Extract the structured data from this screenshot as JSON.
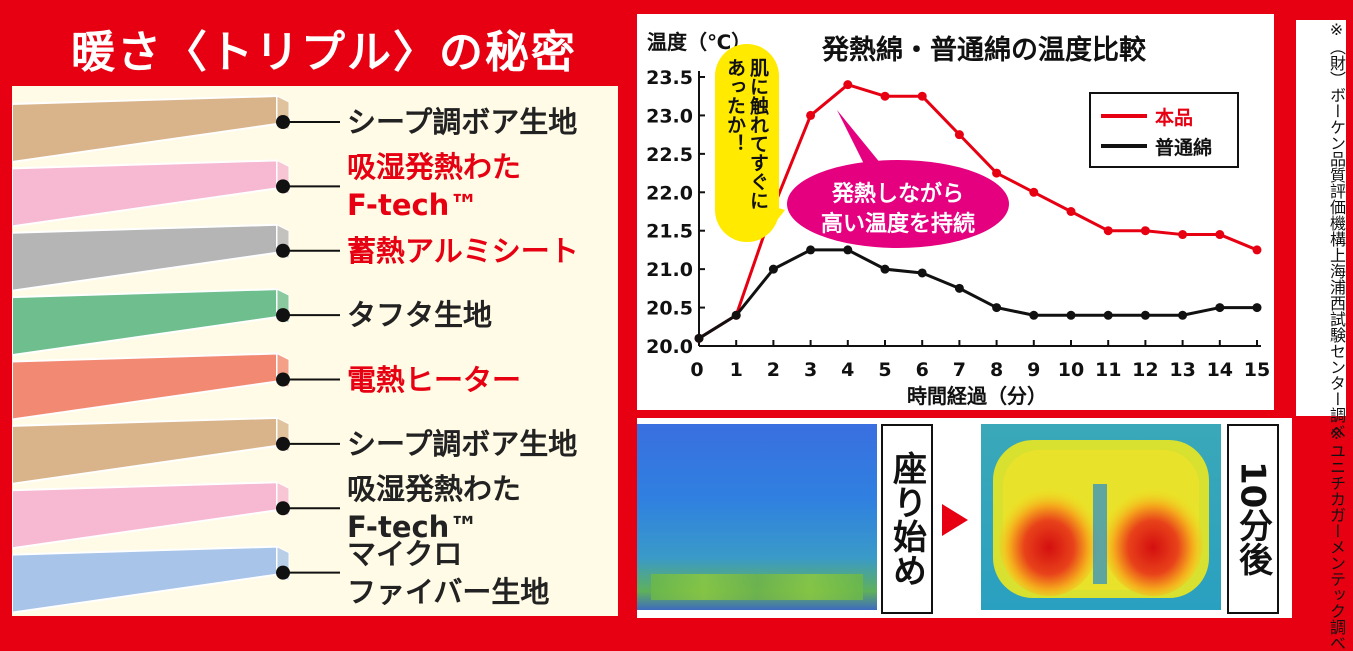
{
  "title": "暖さ〈トリプル〉の秘密",
  "layers": [
    {
      "lines": [
        "シープ調ボア生地"
      ],
      "color": "#d9b48a",
      "red": false
    },
    {
      "lines": [
        "吸湿発熱わた",
        "F-tech™"
      ],
      "color": "#f7b8d2",
      "red": true
    },
    {
      "lines": [
        "蓄熱アルミシート"
      ],
      "color": "#b5b5b5",
      "red": true
    },
    {
      "lines": [
        "タフタ生地"
      ],
      "color": "#6fbf8e",
      "red": false
    },
    {
      "lines": [
        "電熱ヒーター"
      ],
      "color": "#f28a73",
      "red": true
    },
    {
      "lines": [
        "シープ調ボア生地"
      ],
      "color": "#d9b48a",
      "red": false
    },
    {
      "lines": [
        "吸湿発熱わた",
        "F-tech™"
      ],
      "color": "#f7b8d2",
      "red": false
    },
    {
      "lines": [
        "マイクロ",
        "ファイバー生地"
      ],
      "color": "#a8c4e8",
      "red": false
    }
  ],
  "chart_data": {
    "type": "line",
    "title": "発熱綿・普通綿の温度比較",
    "xlabel": "時間経過（分）",
    "ylabel": "温度（℃）",
    "x": [
      0,
      1,
      2,
      3,
      4,
      5,
      6,
      7,
      8,
      9,
      10,
      11,
      12,
      13,
      14,
      15
    ],
    "xlim": [
      0,
      15
    ],
    "ylim": [
      20.0,
      23.5
    ],
    "yticks": [
      "20.0",
      "20.5",
      "21.0",
      "21.5",
      "22.0",
      "22.5",
      "23.0",
      "23.5"
    ],
    "series": [
      {
        "name": "本品",
        "color": "#e60012",
        "values": [
          20.1,
          20.4,
          21.8,
          23.0,
          23.4,
          23.25,
          23.25,
          22.75,
          22.25,
          22.0,
          21.75,
          21.5,
          21.5,
          21.45,
          21.45,
          21.25
        ]
      },
      {
        "name": "普通綿",
        "color": "#111111",
        "values": [
          20.1,
          20.4,
          21.0,
          21.25,
          21.25,
          21.0,
          20.95,
          20.75,
          20.5,
          20.4,
          20.4,
          20.4,
          20.4,
          20.4,
          20.5,
          20.5
        ]
      }
    ],
    "annotations": {
      "yellow": "肌に触れてすぐにあったか！",
      "pink_line1": "発熱しながら",
      "pink_line2": "高い温度を持続"
    },
    "legend_position": "top-right",
    "grid": false
  },
  "source_note": "※（財）ボーケン品質評価機構上海浦西試験センター調べ",
  "thermal": {
    "start_label": "座り始め",
    "after_label": "10分後",
    "note": "※ユニチカガーメンテック調べ"
  },
  "colors": {
    "accent": "#e60012",
    "pink": "#e4007f",
    "yellow": "#ffea00"
  }
}
